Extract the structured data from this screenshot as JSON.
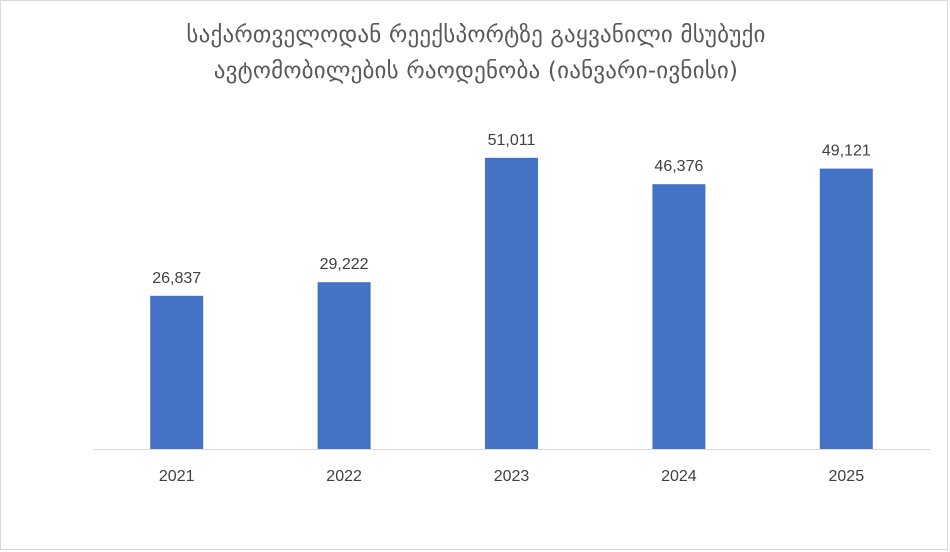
{
  "chart_data": {
    "type": "bar",
    "title_lines": [
      "საქართველოდან რეექსპორტზე გაყვანილი მსუბუქი",
      "ავტომობილების რაოდენობა (იანვარი-ივნისი)"
    ],
    "categories": [
      "2021",
      "2022",
      "2023",
      "2024",
      "2025"
    ],
    "values": [
      26837,
      29222,
      51011,
      46376,
      49121
    ],
    "data_labels": [
      "26,837",
      "29,222",
      "51,011",
      "46,376",
      "49,121"
    ],
    "xlabel": "",
    "ylabel": "",
    "ylim": [
      0,
      55000
    ],
    "grid": false,
    "legend": "none",
    "bar_color": "#4472C4",
    "axis_color": "#D9D9D9",
    "text_color": "#404040",
    "title_color": "#595959"
  }
}
